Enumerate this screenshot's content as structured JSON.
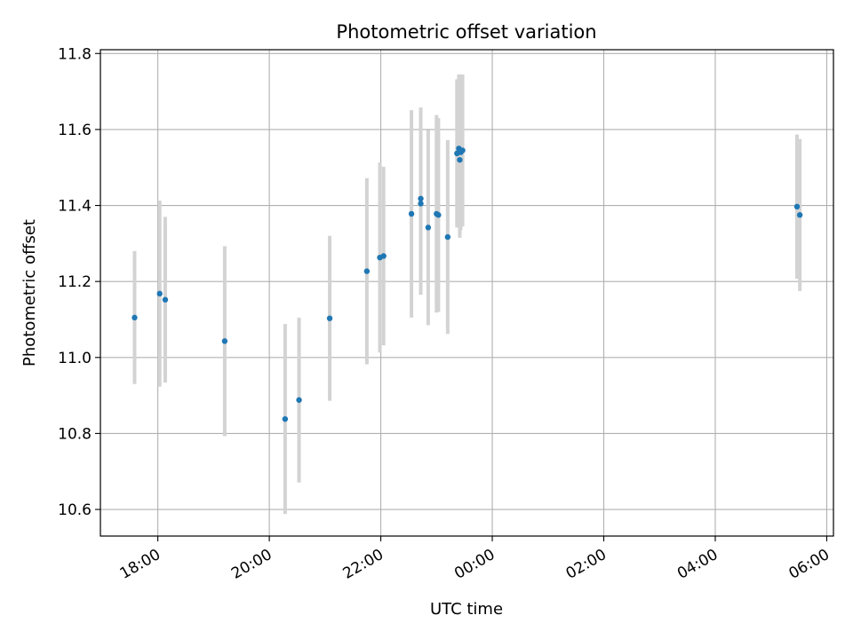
{
  "chart_data": {
    "type": "scatter",
    "title": "Photometric offset variation",
    "xlabel": "UTC time",
    "ylabel": "Photometric offset",
    "x_unit": "hours",
    "xlim": [
      16.97,
      30.12
    ],
    "ylim": [
      10.53,
      11.81
    ],
    "xticks": [
      {
        "value": 18,
        "label": "18:00"
      },
      {
        "value": 20,
        "label": "20:00"
      },
      {
        "value": 22,
        "label": "22:00"
      },
      {
        "value": 24,
        "label": "00:00"
      },
      {
        "value": 26,
        "label": "02:00"
      },
      {
        "value": 28,
        "label": "04:00"
      },
      {
        "value": 30,
        "label": "06:00"
      }
    ],
    "yticks": [
      {
        "value": 10.6,
        "label": "10.6"
      },
      {
        "value": 10.8,
        "label": "10.8"
      },
      {
        "value": 11.0,
        "label": "11.0"
      },
      {
        "value": 11.2,
        "label": "11.2"
      },
      {
        "value": 11.4,
        "label": "11.4"
      },
      {
        "value": 11.6,
        "label": "11.6"
      },
      {
        "value": 11.8,
        "label": "11.8"
      }
    ],
    "grid": true,
    "point_color": "#1f77b4",
    "errorbar_color": "#d3d3d3",
    "points": [
      {
        "x": "17:35",
        "y": 11.105,
        "err": 0.175
      },
      {
        "x": "18:02",
        "y": 11.168,
        "err": 0.245
      },
      {
        "x": "18:08",
        "y": 11.152,
        "err": 0.218
      },
      {
        "x": "19:12",
        "y": 11.043,
        "err": 0.25
      },
      {
        "x": "20:17",
        "y": 10.838,
        "err": 0.25
      },
      {
        "x": "20:32",
        "y": 10.888,
        "err": 0.217
      },
      {
        "x": "21:05",
        "y": 11.103,
        "err": 0.217
      },
      {
        "x": "21:45",
        "y": 11.227,
        "err": 0.245
      },
      {
        "x": "21:59",
        "y": 11.263,
        "err": 0.25
      },
      {
        "x": "22:03",
        "y": 11.267,
        "err": 0.235
      },
      {
        "x": "22:33",
        "y": 11.378,
        "err": 0.273
      },
      {
        "x": "22:43",
        "y": 11.418,
        "err": 0.24
      },
      {
        "x": "22:43",
        "y": 11.405,
        "err": 0.24
      },
      {
        "x": "22:51",
        "y": 11.342,
        "err": 0.257
      },
      {
        "x": "23:00",
        "y": 11.378,
        "err": 0.26
      },
      {
        "x": "23:02",
        "y": 11.375,
        "err": 0.255
      },
      {
        "x": "23:12",
        "y": 11.317,
        "err": 0.255
      },
      {
        "x": "23:22",
        "y": 11.537,
        "err": 0.195
      },
      {
        "x": "23:24",
        "y": 11.55,
        "err": 0.195
      },
      {
        "x": "23:25",
        "y": 11.52,
        "err": 0.205
      },
      {
        "x": "23:26",
        "y": 11.54,
        "err": 0.205
      },
      {
        "x": "23:28",
        "y": 11.545,
        "err": 0.2
      },
      {
        "x": "05:28",
        "y": 11.397,
        "err": 0.19
      },
      {
        "x": "05:31",
        "y": 11.375,
        "err": 0.2
      }
    ]
  }
}
